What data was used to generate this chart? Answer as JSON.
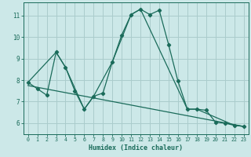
{
  "xlabel": "Humidex (Indice chaleur)",
  "bg_color": "#cce8e8",
  "grid_color": "#aacccc",
  "line_color": "#1a6b5a",
  "xlim_min": -0.5,
  "xlim_max": 23.5,
  "ylim_min": 5.5,
  "ylim_max": 11.6,
  "xticks": [
    0,
    1,
    2,
    3,
    4,
    5,
    6,
    7,
    8,
    9,
    10,
    11,
    12,
    13,
    14,
    15,
    16,
    17,
    18,
    19,
    20,
    21,
    22,
    23
  ],
  "yticks": [
    6,
    7,
    8,
    9,
    10,
    11
  ],
  "line1_x": [
    0,
    1,
    2,
    3,
    4,
    5,
    6,
    7,
    8,
    9,
    10,
    11,
    12,
    13,
    14,
    15,
    16,
    17,
    18,
    19,
    20,
    21,
    22,
    23
  ],
  "line1_y": [
    7.9,
    7.6,
    7.3,
    9.3,
    8.6,
    7.5,
    6.65,
    7.25,
    7.4,
    8.85,
    10.1,
    11.05,
    11.3,
    11.05,
    11.25,
    9.65,
    7.95,
    6.65,
    6.65,
    6.6,
    6.05,
    6.0,
    5.9,
    5.85
  ],
  "line2_x": [
    0,
    3,
    4,
    6,
    7,
    9,
    11,
    12,
    17,
    18,
    22,
    23
  ],
  "line2_y": [
    7.9,
    9.3,
    8.6,
    6.65,
    7.25,
    8.85,
    11.05,
    11.3,
    6.65,
    6.65,
    5.9,
    5.85
  ],
  "line3_x": [
    0,
    23
  ],
  "line3_y": [
    7.75,
    5.85
  ]
}
